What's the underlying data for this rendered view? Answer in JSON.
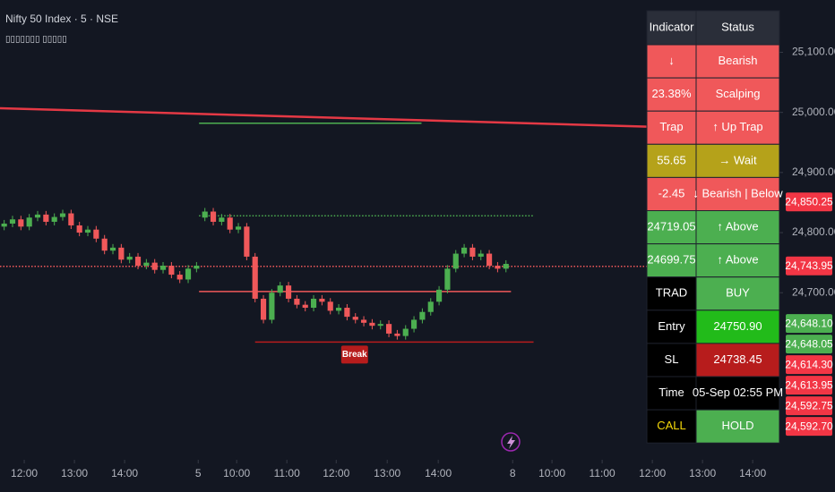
{
  "chart_data": {
    "type": "candlestick",
    "title": "Nifty 50 Index · 5 · NSE",
    "subtitle": "▯▯▯▯▯▯▯ ▯▯▯▯▯",
    "up_color": "#4caf50",
    "down_color": "#f0585a",
    "candles": [
      [
        24810,
        24821,
        24804,
        24815
      ],
      [
        24815,
        24828,
        24809,
        24822
      ],
      [
        24822,
        24828,
        24804,
        24810
      ],
      [
        24810,
        24831,
        24804,
        24825
      ],
      [
        24825,
        24836,
        24819,
        24830
      ],
      [
        24830,
        24836,
        24812,
        24818
      ],
      [
        24818,
        24832,
        24812,
        24826
      ],
      [
        24826,
        24838,
        24820,
        24832
      ],
      [
        24832,
        24838,
        24806,
        24812
      ],
      [
        24812,
        24818,
        24794,
        24800
      ],
      [
        24800,
        24811,
        24794,
        24805
      ],
      [
        24805,
        24811,
        24784,
        24790
      ],
      [
        24790,
        24796,
        24764,
        24770
      ],
      [
        24770,
        24781,
        24764,
        24775
      ],
      [
        24775,
        24781,
        24749,
        24755
      ],
      [
        24755,
        24766,
        24749,
        24760
      ],
      [
        24760,
        24766,
        24739,
        24745
      ],
      [
        24745,
        24756,
        24739,
        24750
      ],
      [
        24750,
        24756,
        24732,
        24738
      ],
      [
        24738,
        24751,
        24732,
        24745
      ],
      [
        24745,
        24751,
        24724,
        24730
      ],
      [
        24730,
        24736,
        24716,
        24722
      ],
      [
        24722,
        24746,
        24716,
        24740
      ],
      [
        24740,
        24751,
        24734,
        24745
      ],
      [
        24825,
        24841,
        24819,
        24835
      ],
      [
        24835,
        24841,
        24812,
        24818
      ],
      [
        24818,
        24831,
        24812,
        24825
      ],
      [
        24825,
        24831,
        24799,
        24805
      ],
      [
        24805,
        24816,
        24799,
        24810
      ],
      [
        24810,
        24816,
        24754,
        24760
      ],
      [
        24760,
        24766,
        24684,
        24690
      ],
      [
        24690,
        24696,
        24649,
        24655
      ],
      [
        24655,
        24706,
        24649,
        24700
      ],
      [
        24700,
        24718,
        24694,
        24712
      ],
      [
        24712,
        24718,
        24684,
        24690
      ],
      [
        24690,
        24696,
        24674,
        24680
      ],
      [
        24680,
        24686,
        24669,
        24675
      ],
      [
        24675,
        24696,
        24669,
        24690
      ],
      [
        24690,
        24696,
        24679,
        24685
      ],
      [
        24685,
        24691,
        24664,
        24670
      ],
      [
        24670,
        24681,
        24664,
        24675
      ],
      [
        24675,
        24681,
        24654,
        24660
      ],
      [
        24660,
        24666,
        24649,
        24655
      ],
      [
        24655,
        24661,
        24644,
        24650
      ],
      [
        24650,
        24656,
        24639,
        24645
      ],
      [
        24645,
        24654,
        24639,
        24648
      ],
      [
        24648,
        24654,
        24626,
        24632
      ],
      [
        24632,
        24638,
        24622,
        24628
      ],
      [
        24628,
        24646,
        24622,
        24640
      ],
      [
        24640,
        24661,
        24634,
        24655
      ],
      [
        24655,
        24674,
        24649,
        24668
      ],
      [
        24668,
        24691,
        24662,
        24685
      ],
      [
        24685,
        24711,
        24679,
        24705
      ],
      [
        24705,
        24746,
        24699,
        24740
      ],
      [
        24740,
        24771,
        24734,
        24765
      ],
      [
        24765,
        24781,
        24759,
        24775
      ],
      [
        24775,
        24781,
        24754,
        24760
      ],
      [
        24760,
        24771,
        24754,
        24765
      ],
      [
        24765,
        24771,
        24739,
        24745
      ],
      [
        24745,
        24751,
        24734,
        24740
      ],
      [
        24740,
        24754,
        24734,
        24748
      ]
    ],
    "xlim": [
      0,
      93.2
    ],
    "xticks": [
      {
        "value": 2.9,
        "label": "12:00"
      },
      {
        "value": 8.9,
        "label": "13:00"
      },
      {
        "value": 14.9,
        "label": "14:00"
      },
      {
        "value": 23.7,
        "label": "5"
      },
      {
        "value": 28.3,
        "label": "10:00"
      },
      {
        "value": 34.3,
        "label": "11:00"
      },
      {
        "value": 40.2,
        "label": "12:00"
      },
      {
        "value": 46.3,
        "label": "13:00"
      },
      {
        "value": 52.4,
        "label": "14:00"
      },
      {
        "value": 61.3,
        "label": "8"
      },
      {
        "value": 66,
        "label": "10:00"
      },
      {
        "value": 72,
        "label": "11:00"
      },
      {
        "value": 78,
        "label": "12:00"
      },
      {
        "value": 84,
        "label": "13:00"
      },
      {
        "value": 90,
        "label": "14:00"
      }
    ],
    "ylim": [
      24425,
      25187
    ],
    "yticks": [
      {
        "value": 25100,
        "label": "25,100.00"
      },
      {
        "value": 25000,
        "label": "25,000.00"
      },
      {
        "value": 24900,
        "label": "24,900.00"
      },
      {
        "value": 24800,
        "label": "24,800.00"
      },
      {
        "value": 24700,
        "label": "24,700.00"
      }
    ],
    "trendline": {
      "x": [
        0,
        93.2
      ],
      "y": [
        25007,
        24970
      ],
      "color": "#e53945"
    },
    "levels": [
      {
        "value": 24982,
        "from": 23.8,
        "to": 50.4,
        "color": "#4caf50",
        "style": "solid"
      },
      {
        "value": 24828,
        "from": 23.8,
        "to": 63.8,
        "color": "#4caf50",
        "style": "dotted"
      },
      {
        "value": 24702,
        "from": 23.8,
        "to": 61.1,
        "color": "#f0585a",
        "style": "solid"
      },
      {
        "value": 24618,
        "from": 30.5,
        "to": 63.8,
        "color": "#b71c1c",
        "style": "solid"
      },
      {
        "value": 24743.95,
        "from": 0,
        "to": 93.2,
        "color": "#f0585a",
        "style": "dotted"
      }
    ],
    "annotations": [
      {
        "text": "Break",
        "x": 42.4,
        "y": 24597,
        "color": "#b71c1c"
      }
    ],
    "price_tags": [
      {
        "value": 24850.25,
        "label": "24,850.25",
        "color": "#f23645"
      },
      {
        "value": 24743.95,
        "label": "24,743.95",
        "color": "#f23645"
      },
      {
        "value": 24648.1,
        "label": "24,648.10",
        "color": "#4caf50"
      },
      {
        "value": 24648.05,
        "label": "24,648.05",
        "color": "#4caf50"
      },
      {
        "value": 24614.3,
        "label": "24,614.30",
        "color": "#f23645"
      },
      {
        "value": 24613.95,
        "label": "24,613.95",
        "color": "#f23645"
      },
      {
        "value": 24592.75,
        "label": "24,592.75",
        "color": "#f23645"
      },
      {
        "value": 24592.7,
        "label": "24,592.70",
        "color": "#f23645"
      }
    ]
  },
  "table": {
    "header": [
      "Indicator",
      "Status"
    ],
    "rows": [
      {
        "cells": [
          "↓",
          "Bearish"
        ],
        "colors": [
          "#f0585a",
          "#f0585a"
        ]
      },
      {
        "cells": [
          "23.38%",
          "Scalping"
        ],
        "colors": [
          "#f0585a",
          "#f0585a"
        ]
      },
      {
        "cells": [
          "Trap",
          "↑ Up Trap"
        ],
        "colors": [
          "#f0585a",
          "#f0585a"
        ]
      },
      {
        "cells": [
          "55.65",
          "→ Wait"
        ],
        "colors": [
          "#b5a21a",
          "#b5a21a"
        ]
      },
      {
        "cells": [
          "-2.45",
          "↓ Bearish | Below"
        ],
        "colors": [
          "#f0585a",
          "#f0585a"
        ]
      },
      {
        "cells": [
          "24719.05",
          "↑ Above"
        ],
        "colors": [
          "#4caf50",
          "#4caf50"
        ]
      },
      {
        "cells": [
          "24699.75",
          "↑ Above"
        ],
        "colors": [
          "#4caf50",
          "#4caf50"
        ]
      },
      {
        "cells": [
          "TRAD",
          "BUY"
        ],
        "colors": [
          "#000000",
          "#4caf50"
        ]
      },
      {
        "cells": [
          "Entry",
          "24750.90"
        ],
        "colors": [
          "#000000",
          "#22bb1a"
        ]
      },
      {
        "cells": [
          "SL",
          "24738.45"
        ],
        "colors": [
          "#000000",
          "#b71c1c"
        ]
      },
      {
        "cells": [
          "Time",
          "05-Sep 02:55 PM"
        ],
        "colors": [
          "#000000",
          "#000000"
        ]
      },
      {
        "cells": [
          "CALL",
          "HOLD"
        ],
        "colors": [
          "#000000",
          "#4caf50"
        ],
        "text_colors": [
          "#f5d90a",
          "#ffffff"
        ]
      }
    ]
  }
}
